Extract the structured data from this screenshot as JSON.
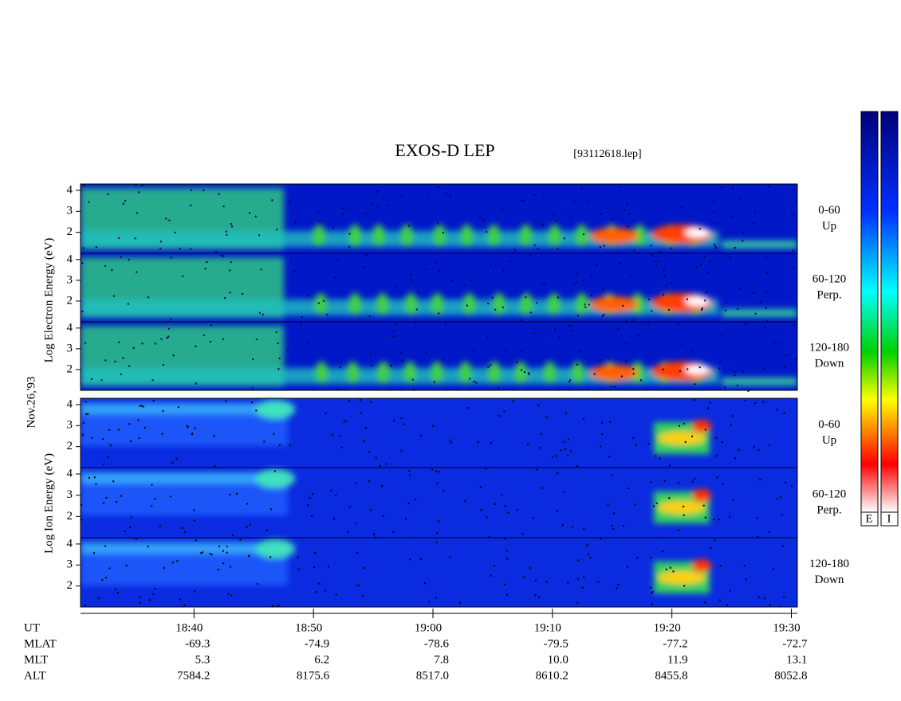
{
  "header": {
    "title": "EXOS-D LEP",
    "file": "[93112618.lep]",
    "date": "Nov.26,'93"
  },
  "electron_label": "Log Electron Energy (eV)",
  "ion_label": "Log Ion Energy (eV)",
  "energy_axis": {
    "ylim": [
      1,
      4.3
    ],
    "yticks": [
      2,
      3,
      4
    ]
  },
  "panels": [
    {
      "range": "0-60",
      "direction": "Up"
    },
    {
      "range": "60-120",
      "direction": "Perp."
    },
    {
      "range": "120-180",
      "direction": "Down"
    },
    {
      "range": "0-60",
      "direction": "Up"
    },
    {
      "range": "60-120",
      "direction": "Perp."
    },
    {
      "range": "120-180",
      "direction": "Down"
    }
  ],
  "time_axis": {
    "name": "UT",
    "xlim": [
      1110.5,
      1170.5
    ],
    "xticks": [
      {
        "value": 1120,
        "label": "18:40"
      },
      {
        "value": 1130,
        "label": "18:50"
      },
      {
        "value": 1140,
        "label": "19:00"
      },
      {
        "value": 1150,
        "label": "19:10"
      },
      {
        "value": 1160,
        "label": "19:20"
      },
      {
        "value": 1170,
        "label": "19:30"
      }
    ]
  },
  "rows": [
    {
      "name": "MLAT",
      "values": [
        "-69.3",
        "-74.9",
        "-78.6",
        "-79.5",
        "-77.2",
        "-72.7"
      ]
    },
    {
      "name": "MLT",
      "values": [
        "5.3",
        "6.2",
        "7.8",
        "10.0",
        "11.9",
        "13.1"
      ]
    },
    {
      "name": "ALT",
      "values": [
        "7584.2",
        "8175.6",
        "8517.0",
        "8610.2",
        "8455.8",
        "8052.8"
      ]
    }
  ],
  "colorbars": [
    "E",
    "I"
  ]
}
